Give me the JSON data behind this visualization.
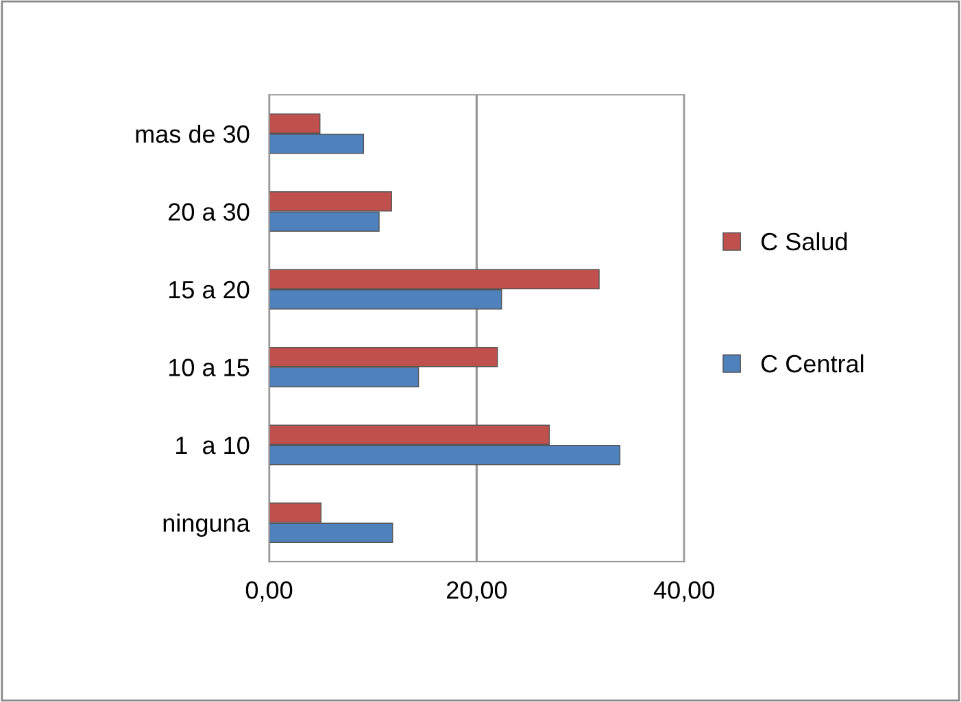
{
  "chart_data": {
    "type": "bar",
    "orientation": "horizontal",
    "categories": [
      "mas de 30",
      "20 a 30",
      "15 a 20",
      "10 a 15",
      "1  a 10",
      "ninguna"
    ],
    "series": [
      {
        "name": "C Salud",
        "color": "#c0504d",
        "values": [
          4.9,
          11.8,
          31.8,
          22.0,
          27.0,
          5.0
        ]
      },
      {
        "name": "C Central",
        "color": "#4f81bd",
        "values": [
          9.1,
          10.6,
          22.4,
          14.4,
          33.8,
          11.9
        ]
      }
    ],
    "xlim": [
      0,
      40
    ],
    "xticks": [
      {
        "value": 0,
        "label": "0,00"
      },
      {
        "value": 20,
        "label": "20,00"
      },
      {
        "value": 40,
        "label": "40,00"
      }
    ],
    "grid": "x",
    "legend": "right"
  }
}
